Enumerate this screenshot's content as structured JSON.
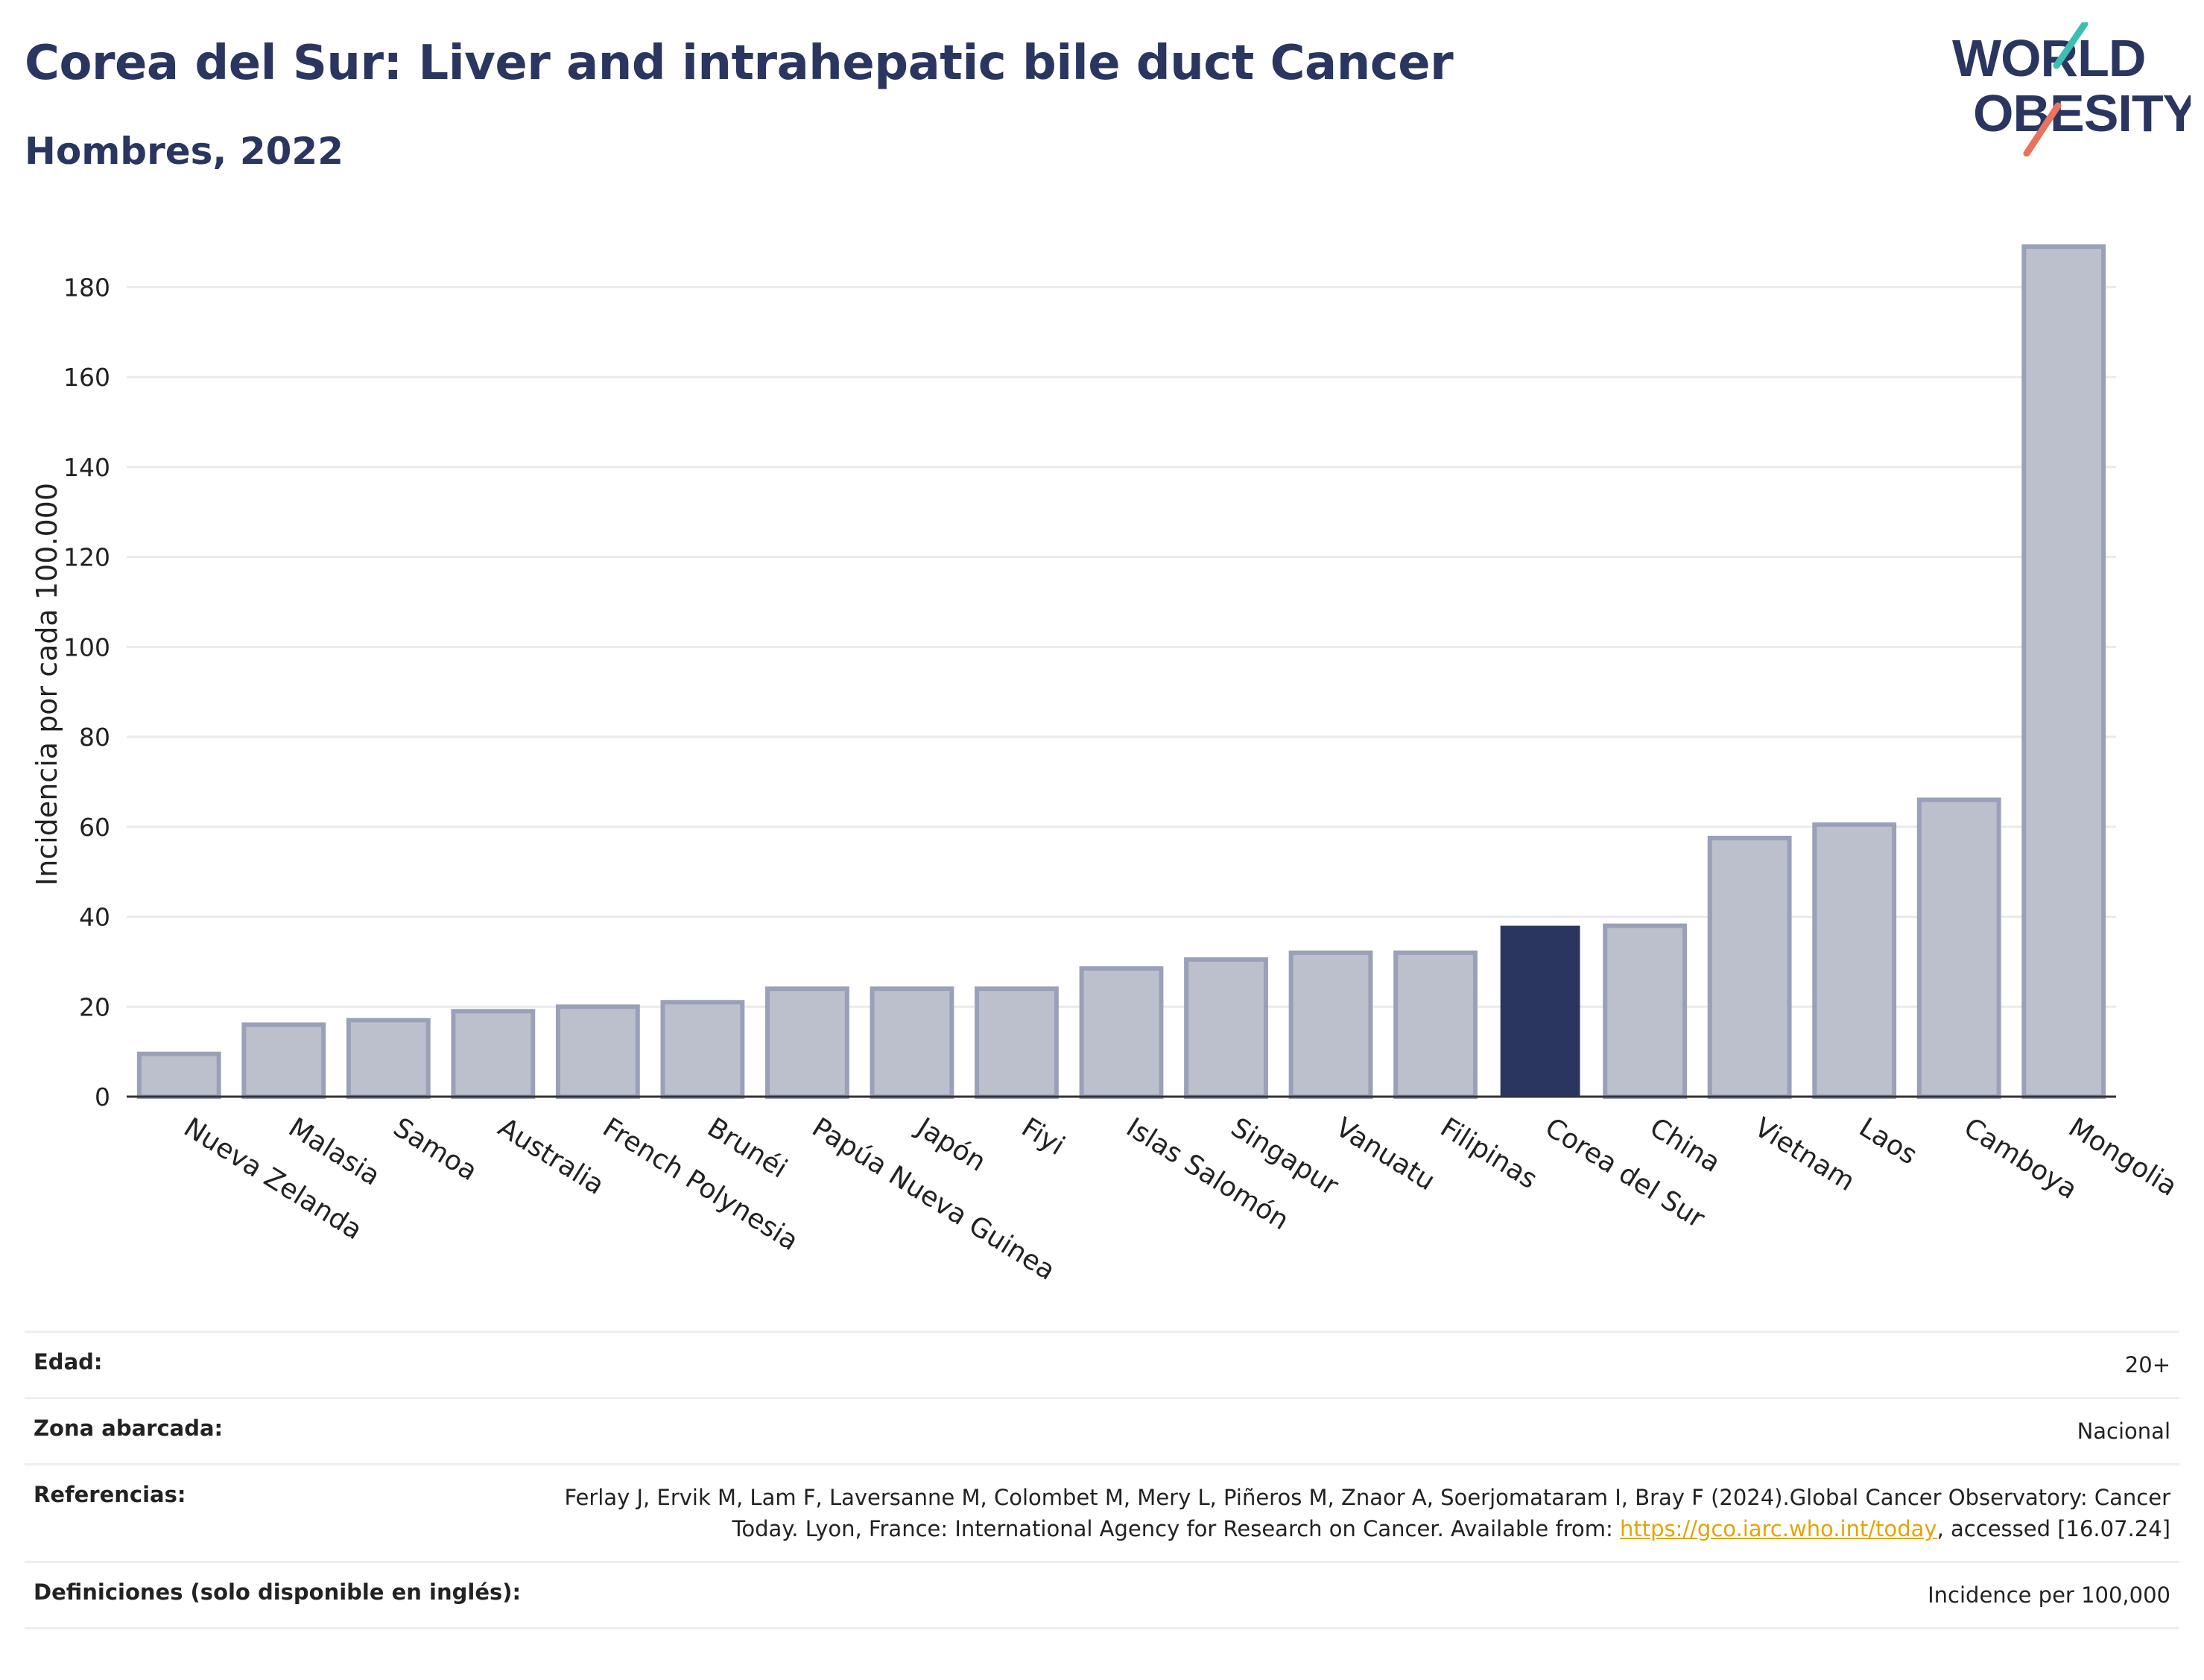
{
  "header": {
    "title": "Corea del Sur: Liver and intrahepatic bile duct Cancer",
    "subtitle": "Hombres, 2022"
  },
  "logo": {
    "line1": "WORLD",
    "line2": "OBESITY"
  },
  "colors": {
    "bar": "#bcc0cd",
    "bar_border": "#9aa0b7",
    "highlight": "#2a3560",
    "grid": "#e8eaef",
    "link": "#e5a400"
  },
  "chart_data": {
    "type": "bar",
    "title": "Corea del Sur: Liver and intrahepatic bile duct Cancer",
    "subtitle": "Hombres, 2022",
    "xlabel": "",
    "ylabel": "Incidencia por cada 100.000",
    "ylim": [
      0,
      190
    ],
    "yticks": [
      0,
      20,
      40,
      60,
      80,
      100,
      120,
      140,
      160,
      180
    ],
    "grid": true,
    "highlight": "Corea del Sur",
    "categories": [
      "Nueva Zelanda",
      "Malasia",
      "Samoa",
      "Australia",
      "French Polynesia",
      "Brunéi",
      "Papúa Nueva Guinea",
      "Japón",
      "Fiyi",
      "Islas Salomón",
      "Singapur",
      "Vanuatu",
      "Filipinas",
      "Corea del Sur",
      "China",
      "Vietnam",
      "Laos",
      "Camboya",
      "Mongolia"
    ],
    "values": [
      9.5,
      16,
      17,
      19,
      20,
      21,
      24,
      24,
      24,
      28.5,
      30.5,
      32,
      32,
      38,
      38,
      57.5,
      60.5,
      66,
      189
    ]
  },
  "meta": {
    "rows": [
      {
        "label": "Edad:",
        "value": "20+"
      },
      {
        "label": "Zona abarcada:",
        "value": "Nacional"
      },
      {
        "label": "Referencias:",
        "value_before": "Ferlay J, Ervik M, Lam F, Laversanne M, Colombet M, Mery L, Piñeros M, Znaor A, Soerjomataram I, Bray F (2024).Global Cancer Observatory: Cancer Today. Lyon, France: International Agency for Research on Cancer. Available from: ",
        "link": "https://gco.iarc.who.int/today",
        "value_after": ", accessed [16.07.24]"
      },
      {
        "label": "Definiciones (solo disponible en inglés):",
        "value": "Incidence per 100,000"
      }
    ]
  }
}
